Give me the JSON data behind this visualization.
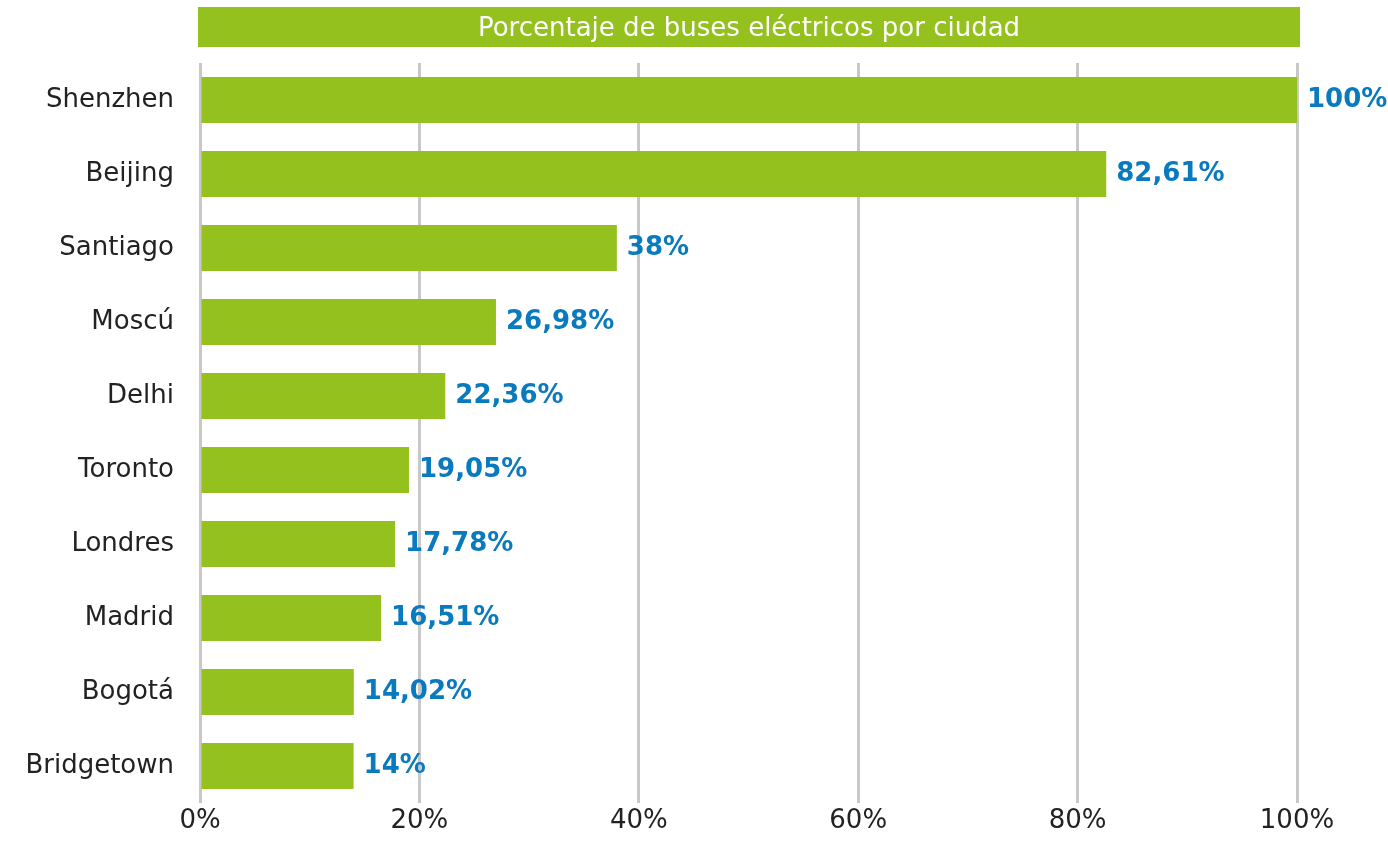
{
  "chart_data": {
    "type": "bar",
    "orientation": "horizontal",
    "title": "Porcentaje de buses eléctricos por ciudad",
    "categories": [
      "Shenzhen",
      "Beijing",
      "Santiago",
      "Moscú",
      "Delhi",
      "Toronto",
      "Londres",
      "Madrid",
      "Bogotá",
      "Bridgetown"
    ],
    "values": [
      100,
      82.61,
      38,
      26.98,
      22.36,
      19.05,
      17.78,
      16.51,
      14.02,
      14
    ],
    "value_labels": [
      "100%",
      "82,61%",
      "38%",
      "26,98%",
      "22,36%",
      "19,05%",
      "17,78%",
      "16,51%",
      "14,02%",
      "14%"
    ],
    "color": "#95c11f",
    "xlim": [
      0,
      100
    ],
    "xticks": [
      {
        "value": 0,
        "label": "0%"
      },
      {
        "value": 20,
        "label": "20%"
      },
      {
        "value": 40,
        "label": "40%"
      },
      {
        "value": 60,
        "label": "60%"
      },
      {
        "value": 80,
        "label": "80%"
      },
      {
        "value": 100,
        "label": "100%"
      }
    ],
    "grid": "x",
    "legend": false
  }
}
